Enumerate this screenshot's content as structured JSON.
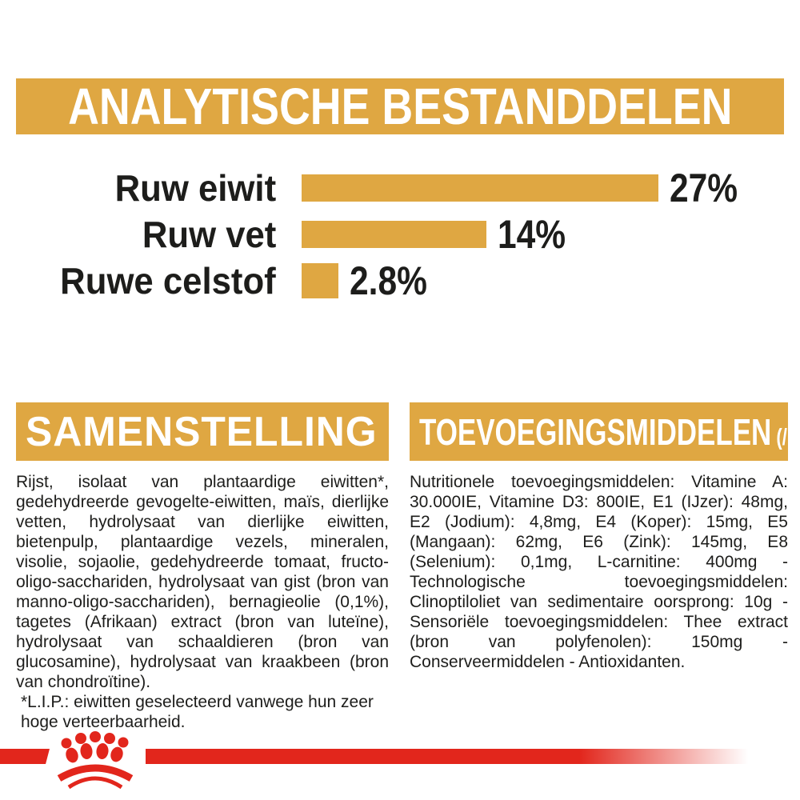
{
  "colors": {
    "gold": "#DFA742",
    "red": "#E2261C",
    "ink": "#1d1d1b",
    "header_text": "#ffffff"
  },
  "analytical": {
    "title": "ANALYTISCHE BESTANDDELEN"
  },
  "chart_data": {
    "type": "bar",
    "title": "ANALYTISCHE BESTANDDELEN",
    "categories": [
      "Ruw eiwit",
      "Ruw vet",
      "Ruwe celstof"
    ],
    "values": [
      27,
      14,
      2.8
    ],
    "value_labels": [
      "27%",
      "14%",
      "2.8%"
    ],
    "unit": "%",
    "xlim": [
      0,
      27
    ],
    "bar_color": "#DFA742",
    "orientation": "horizontal",
    "grid": false,
    "legend": false
  },
  "composition": {
    "title": "SAMENSTELLING",
    "body": "Rijst, isolaat van plantaardige eiwitten*, gedehydreerde gevogelte-eiwitten, maïs, dierlijke vetten, hydrolysaat van dierlijke eiwitten, bietenpulp, plantaardige vezels, mineralen, visolie, sojaolie, gedehydreerde tomaat, fructo-oligo-sacchariden, hydrolysaat van gist (bron van manno-oligo-sacchariden), bernagieolie (0,1%), tagetes (Afrikaan) extract (bron van luteïne), hydrolysaat van schaaldieren (bron van glucosamine), hydrolysaat van kraakbeen (bron van chondroïtine).",
    "footnote": "*L.I.P.: eiwitten geselecteerd vanwege hun zeer hoge verteerbaarheid."
  },
  "additives": {
    "title": "TOEVOEGINGSMIDDELEN",
    "title_suffix": "(/kg)",
    "body": "Nutritionele toevoegingsmiddelen: Vitamine A: 30.000IE, Vitamine D3: 800IE, E1 (IJzer): 48mg, E2 (Jodium): 4,8mg, E4 (Koper): 15mg, E5 (Mangaan): 62mg, E6 (Zink): 145mg, E8 (Selenium): 0,1mg, L-carnitine: 400mg - Technologische toevoegingsmiddelen: Clinoptiloliet van sedimentaire oorsprong: 10g - Sensoriële toevoegingsmiddelen: Thee extract (bron van polyfenolen): 150mg - Conserveermiddelen - Antioxidanten."
  },
  "footer": {
    "logo": "royal-canin-crown"
  }
}
